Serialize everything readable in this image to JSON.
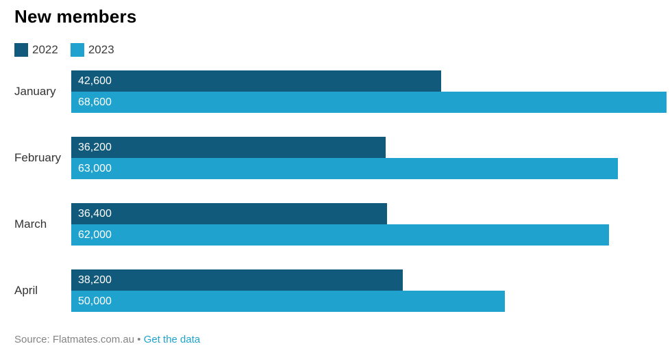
{
  "title": "New members",
  "legend": [
    {
      "label": "2022",
      "color": "#115a7c"
    },
    {
      "label": "2023",
      "color": "#1fa3ce"
    }
  ],
  "footer": {
    "source_text": "Source: Flatmates.com.au",
    "separator": "•",
    "link_label": "Get the data",
    "link_color": "#1fa3ce"
  },
  "colors": {
    "series_2022": "#115a7c",
    "series_2023": "#1fa3ce",
    "value_label": "#ffffff",
    "category_label": "#333333",
    "background": "#ffffff"
  },
  "chart_data": {
    "type": "bar",
    "orientation": "horizontal",
    "title": "New members",
    "categories": [
      "January",
      "February",
      "March",
      "April"
    ],
    "series": [
      {
        "name": "2022",
        "color": "#115a7c",
        "values": [
          42600,
          36200,
          36400,
          38200
        ],
        "labels": [
          "42,600",
          "36,200",
          "36,400",
          "38,200"
        ]
      },
      {
        "name": "2023",
        "color": "#1fa3ce",
        "values": [
          68600,
          63000,
          62000,
          50000
        ],
        "labels": [
          "68,600",
          "63,000",
          "62,000",
          "50,000"
        ]
      }
    ],
    "xlabel": "",
    "ylabel": "",
    "xmax": 68600,
    "grid": false,
    "value_labels_inside_bars": true,
    "legend_position": "top-left"
  }
}
